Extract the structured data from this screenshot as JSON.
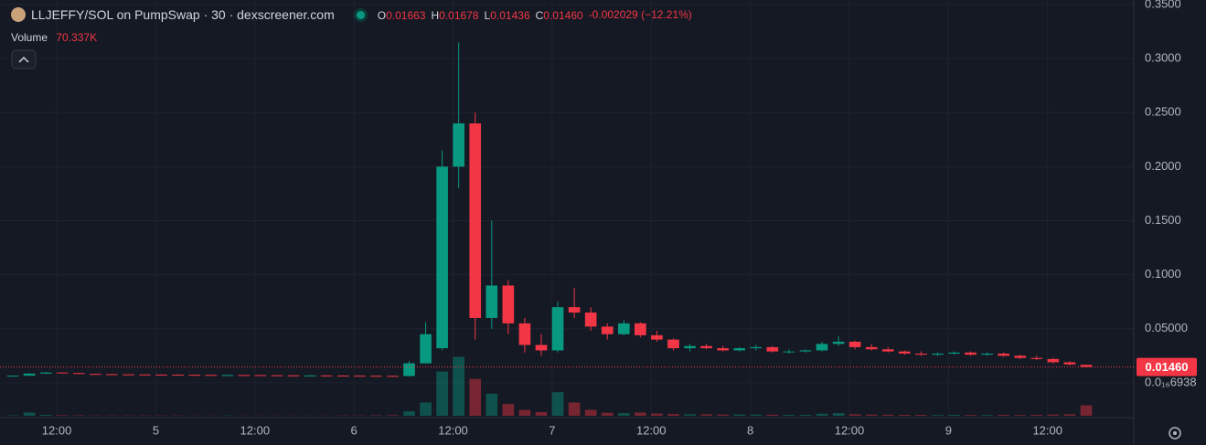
{
  "chart_data": {
    "type": "candlestick",
    "title": "LLJEFFY/SOL on PumpSwap · 30 · dexscreener.com",
    "ohlc_legend": [
      {
        "label": "O",
        "value": "0.01663"
      },
      {
        "label": "H",
        "value": "0.01678"
      },
      {
        "label": "L",
        "value": "0.01436"
      },
      {
        "label": "C",
        "value": "0.01460"
      }
    ],
    "change": "-0.002029 (−12.21%)",
    "volume_label": "Volume",
    "volume_value": "70.337K",
    "up_color": "#089981",
    "down_color": "#f23645",
    "open": [
      0.006,
      0.0066,
      0.0085,
      0.0095,
      0.009,
      0.0082,
      0.008,
      0.0078,
      0.0077,
      0.0076,
      0.0075,
      0.0074,
      0.0073,
      0.0072,
      0.0072,
      0.0071,
      0.007,
      0.0069,
      0.0068,
      0.0068,
      0.0067,
      0.0066,
      0.0065,
      0.0064,
      0.0062,
      0.018,
      0.032,
      0.2,
      0.24,
      0.06,
      0.09,
      0.055,
      0.035,
      0.03,
      0.07,
      0.065,
      0.052,
      0.045,
      0.055,
      0.044,
      0.04,
      0.032,
      0.034,
      0.032,
      0.03,
      0.032,
      0.033,
      0.029,
      0.029,
      0.03,
      0.036,
      0.038,
      0.033,
      0.031,
      0.029,
      0.027,
      0.026,
      0.027,
      0.028,
      0.026,
      0.027,
      0.025,
      0.023,
      0.022,
      0.019,
      0.01663
    ],
    "high": [
      0.0068,
      0.009,
      0.01,
      0.0098,
      0.0092,
      0.0084,
      0.0082,
      0.008,
      0.0079,
      0.0078,
      0.0077,
      0.0076,
      0.0075,
      0.0074,
      0.0074,
      0.0073,
      0.0072,
      0.0071,
      0.007,
      0.007,
      0.0069,
      0.0068,
      0.0067,
      0.0066,
      0.02,
      0.056,
      0.215,
      0.315,
      0.25,
      0.15,
      0.095,
      0.06,
      0.045,
      0.075,
      0.088,
      0.07,
      0.055,
      0.058,
      0.056,
      0.048,
      0.041,
      0.036,
      0.036,
      0.034,
      0.033,
      0.035,
      0.034,
      0.031,
      0.031,
      0.038,
      0.043,
      0.039,
      0.036,
      0.033,
      0.03,
      0.029,
      0.028,
      0.029,
      0.029,
      0.028,
      0.028,
      0.026,
      0.025,
      0.023,
      0.02,
      0.01678
    ],
    "low": [
      0.0058,
      0.0064,
      0.0082,
      0.0088,
      0.008,
      0.0078,
      0.0076,
      0.0075,
      0.0074,
      0.0073,
      0.0072,
      0.0071,
      0.007,
      0.007,
      0.0069,
      0.0068,
      0.0067,
      0.0066,
      0.0066,
      0.0065,
      0.0064,
      0.0063,
      0.0062,
      0.006,
      0.006,
      0.018,
      0.03,
      0.18,
      0.04,
      0.05,
      0.045,
      0.028,
      0.025,
      0.028,
      0.06,
      0.048,
      0.04,
      0.044,
      0.042,
      0.038,
      0.03,
      0.029,
      0.031,
      0.029,
      0.029,
      0.03,
      0.028,
      0.027,
      0.028,
      0.029,
      0.034,
      0.031,
      0.03,
      0.028,
      0.026,
      0.025,
      0.025,
      0.026,
      0.025,
      0.025,
      0.024,
      0.022,
      0.021,
      0.018,
      0.016,
      0.01436
    ],
    "close": [
      0.0066,
      0.0085,
      0.0095,
      0.009,
      0.0082,
      0.008,
      0.0078,
      0.0077,
      0.0076,
      0.0075,
      0.0074,
      0.0073,
      0.0072,
      0.0072,
      0.0071,
      0.007,
      0.0069,
      0.0068,
      0.0068,
      0.0067,
      0.0066,
      0.0065,
      0.0064,
      0.0062,
      0.018,
      0.045,
      0.2,
      0.24,
      0.06,
      0.09,
      0.055,
      0.035,
      0.03,
      0.07,
      0.065,
      0.052,
      0.045,
      0.055,
      0.044,
      0.04,
      0.032,
      0.034,
      0.032,
      0.03,
      0.032,
      0.033,
      0.029,
      0.029,
      0.03,
      0.036,
      0.038,
      0.033,
      0.031,
      0.029,
      0.027,
      0.026,
      0.027,
      0.028,
      0.026,
      0.027,
      0.025,
      0.023,
      0.022,
      0.019,
      0.017,
      0.0146
    ],
    "volume": [
      3,
      22,
      6,
      4,
      3,
      2,
      2,
      2,
      2,
      2,
      2,
      1,
      1,
      2,
      1,
      1,
      1,
      1,
      1,
      1,
      2,
      2,
      3,
      4,
      30,
      90,
      300,
      400,
      250,
      150,
      80,
      40,
      25,
      160,
      90,
      40,
      20,
      18,
      22,
      15,
      12,
      10,
      10,
      8,
      9,
      8,
      7,
      6,
      6,
      14,
      18,
      10,
      8,
      7,
      6,
      6,
      5,
      6,
      5,
      5,
      6,
      5,
      6,
      8,
      10,
      70.337
    ],
    "xlim": [
      -0.777,
      67.88
    ],
    "ylim": [
      -0.0305,
      0.3542
    ],
    "volume_ylim": [
      0,
      620
    ],
    "xticks": [
      {
        "value": 2.66,
        "label": "12:00"
      },
      {
        "value": 8.66,
        "label": "5"
      },
      {
        "value": 14.66,
        "label": "12:00"
      },
      {
        "value": 20.66,
        "label": "6"
      },
      {
        "value": 26.66,
        "label": "12:00"
      },
      {
        "value": 32.66,
        "label": "7"
      },
      {
        "value": 38.66,
        "label": "12:00"
      },
      {
        "value": 44.66,
        "label": "8"
      },
      {
        "value": 50.66,
        "label": "12:00"
      },
      {
        "value": 56.66,
        "label": "9"
      },
      {
        "value": 62.66,
        "label": "12:00"
      }
    ],
    "yticks": [
      {
        "value": 0.35,
        "label": "0.3500"
      },
      {
        "value": 0.3,
        "label": "0.3000"
      },
      {
        "value": 0.25,
        "label": "0.2500"
      },
      {
        "value": 0.2,
        "label": "0.2000"
      },
      {
        "value": 0.15,
        "label": "0.1500"
      },
      {
        "value": 0.1,
        "label": "0.1000"
      },
      {
        "value": 0.05,
        "label": "0.05000"
      },
      {
        "value": 6.938e-17,
        "label": "0.0₁₆6938"
      }
    ],
    "last_price": {
      "value": 0.0146,
      "label": "0.01460"
    },
    "grid": true
  }
}
